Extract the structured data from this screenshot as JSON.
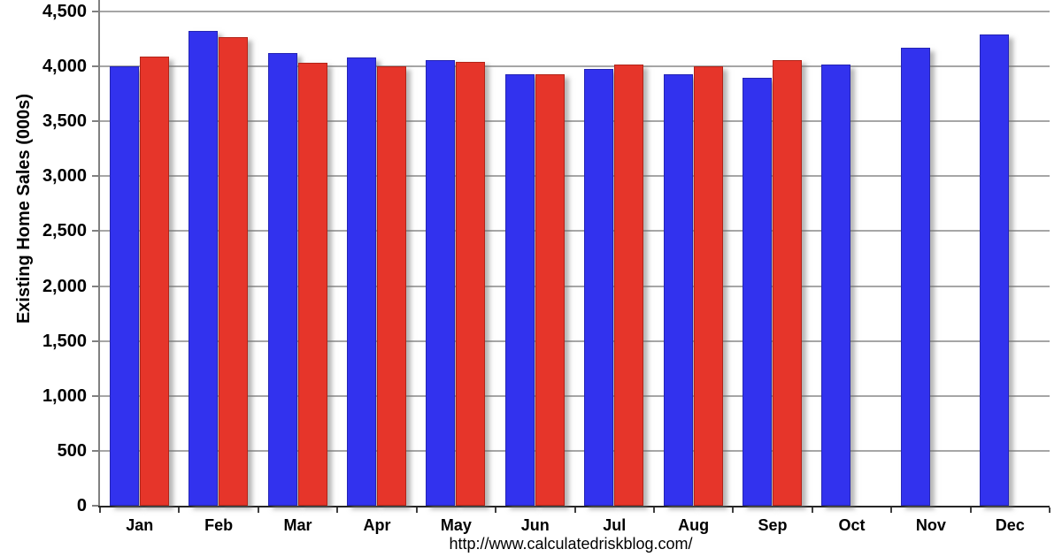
{
  "chart_data": {
    "type": "bar",
    "title": "",
    "xlabel": "",
    "ylabel": "Existing Home Sales (000s)",
    "categories": [
      "Jan",
      "Feb",
      "Mar",
      "Apr",
      "May",
      "Jun",
      "Jul",
      "Aug",
      "Sep",
      "Oct",
      "Nov",
      "Dec"
    ],
    "series": [
      {
        "name": "blue-series",
        "color": "#3232ee",
        "border_color": "#2424b4",
        "values": [
          4000,
          4320,
          4120,
          4080,
          4060,
          3930,
          3980,
          3930,
          3900,
          4020,
          4170,
          4290
        ]
      },
      {
        "name": "red-series",
        "color": "#e6352a",
        "border_color": "#b22418",
        "values": [
          4090,
          4270,
          4030,
          4000,
          4040,
          3930,
          4020,
          4000,
          4060,
          null,
          null,
          null
        ]
      }
    ],
    "ylim": [
      0,
      4500
    ],
    "ytick_step": 500,
    "ytick_labels": [
      "0",
      "500",
      "1,000",
      "1,500",
      "2,000",
      "2,500",
      "3,000",
      "3,500",
      "4,000",
      "4,500"
    ],
    "grid": true,
    "legend": "none"
  },
  "footer": {
    "url": "http://www.calculatedriskblog.com/"
  },
  "colors": {
    "background": "#ffffff",
    "gridline": "#a6a6a6",
    "y_axis": "#808080",
    "x_axis": "#262626",
    "x_tick": "#404040",
    "y_tick": "#808080",
    "text": "#000000"
  }
}
